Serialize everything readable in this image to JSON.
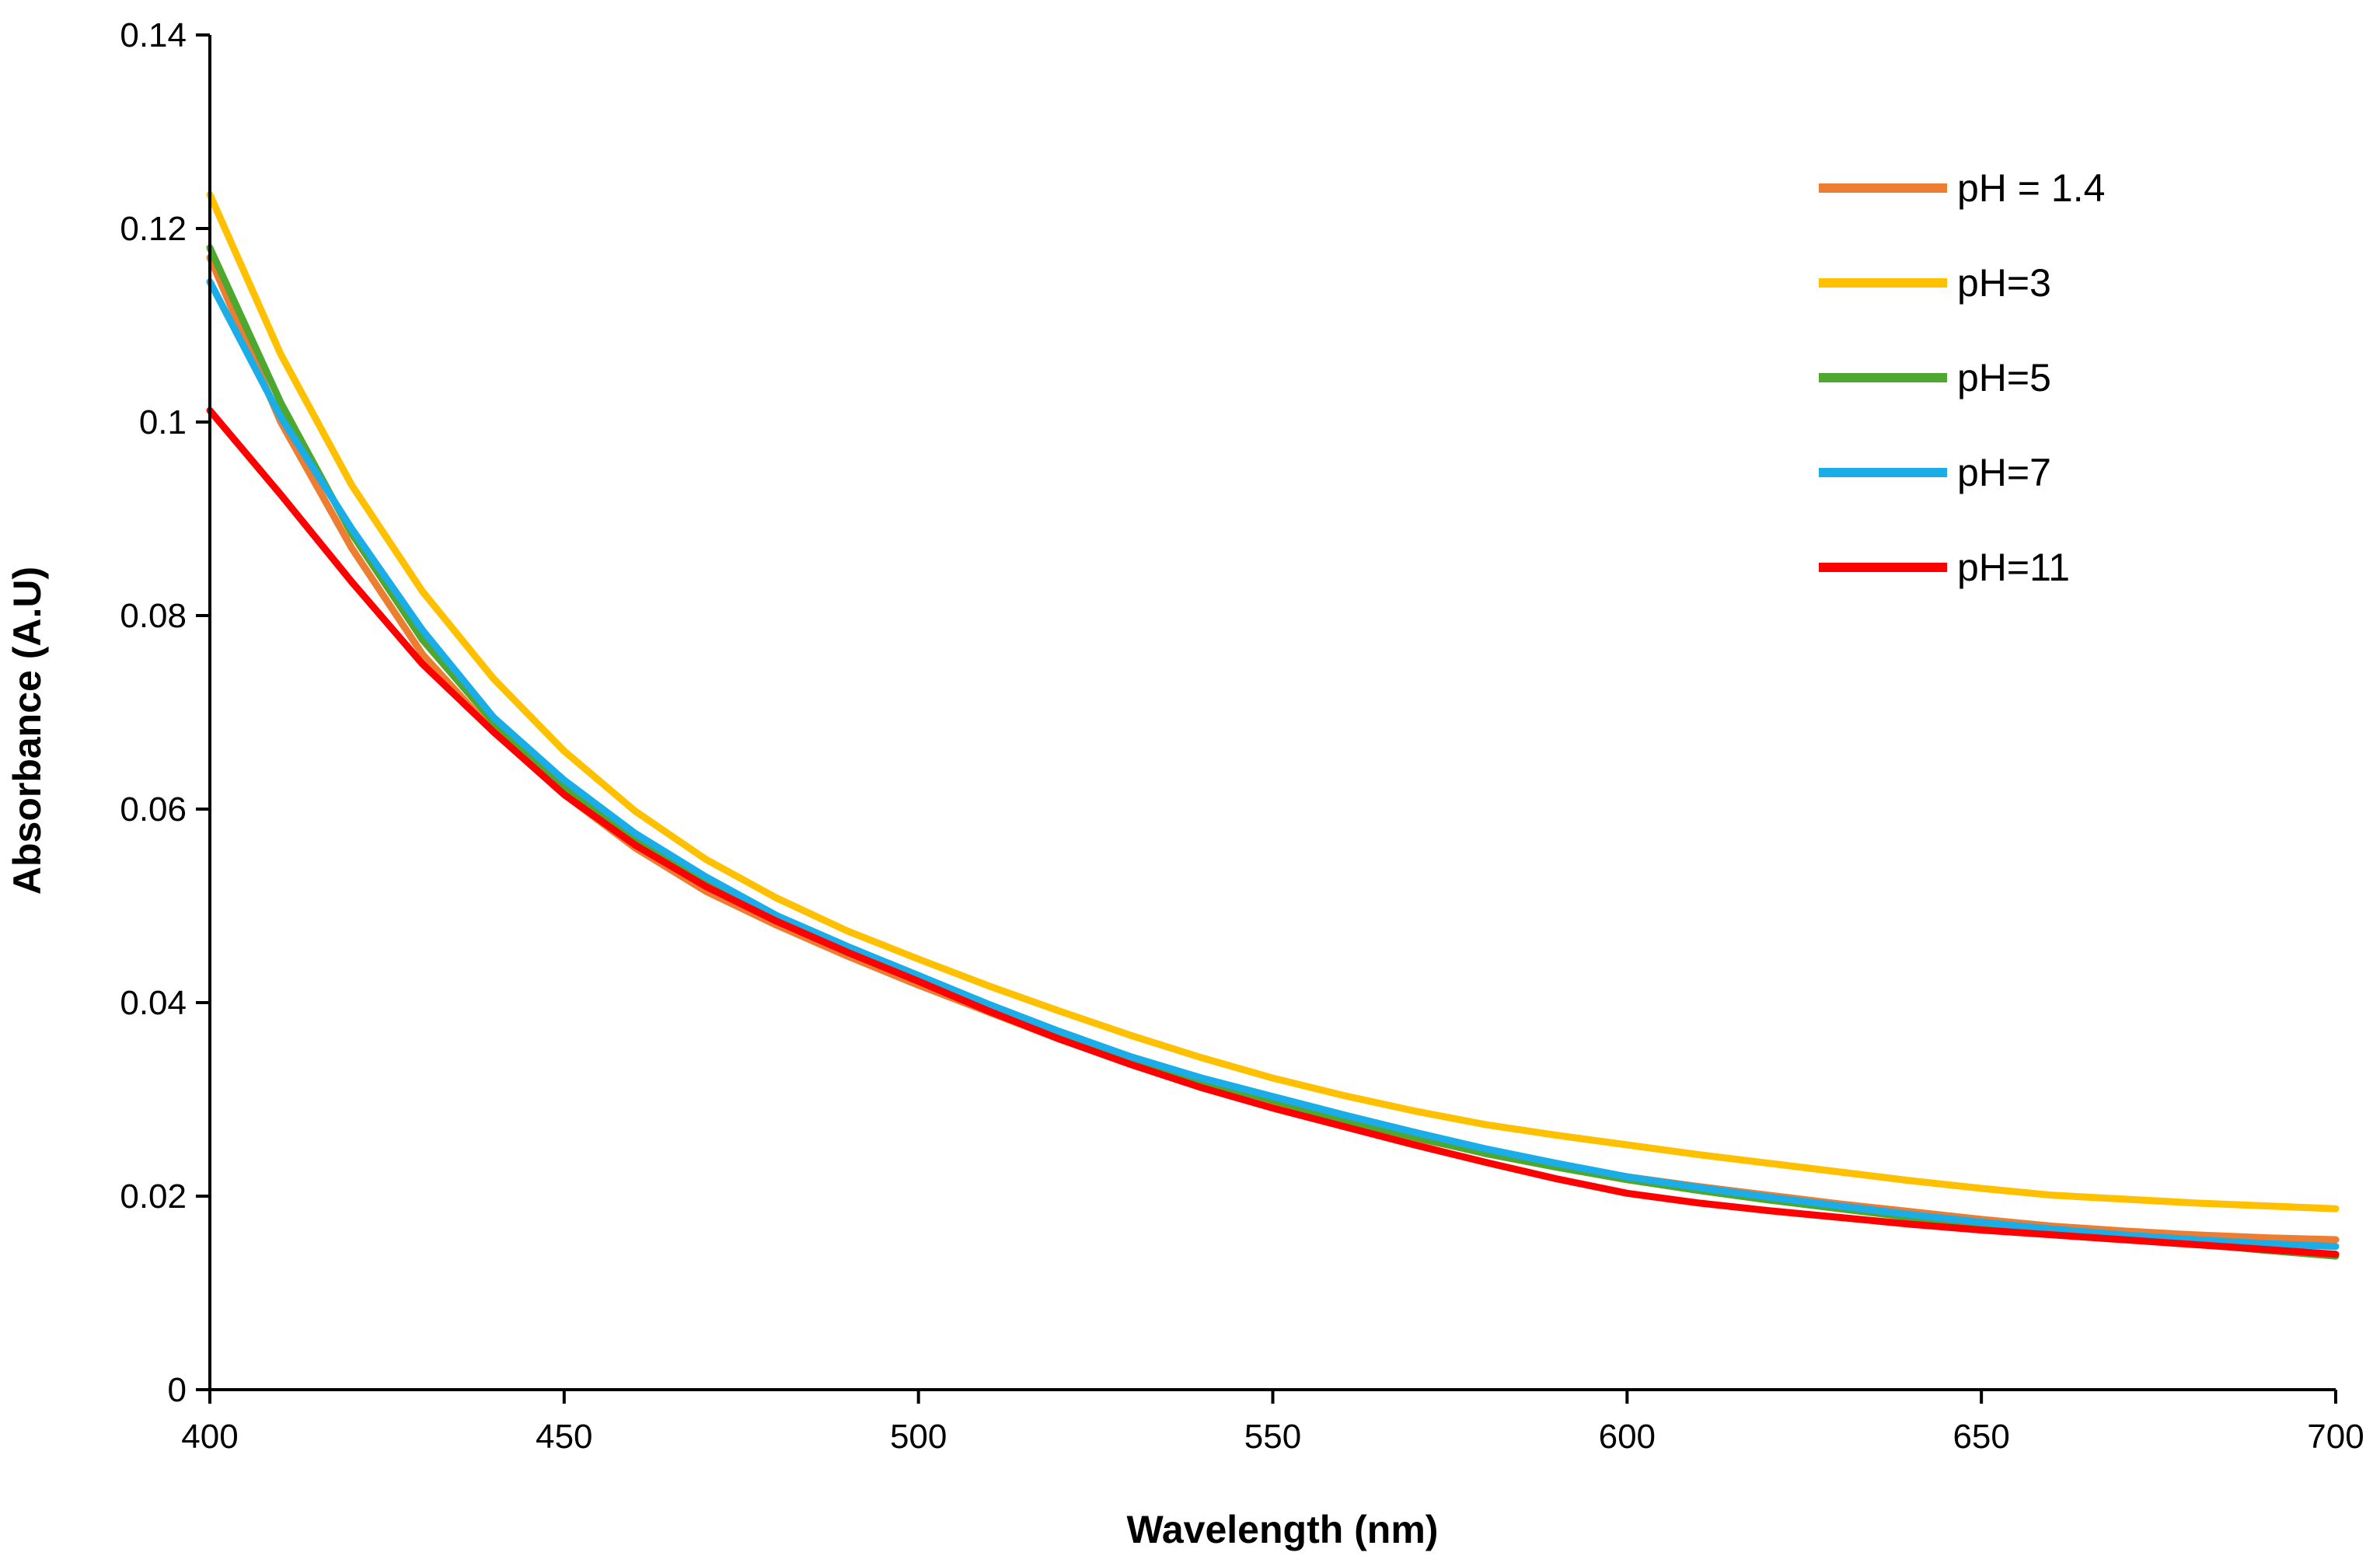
{
  "chart_data": {
    "type": "line",
    "title": "",
    "xlabel": "Wavelength (nm)",
    "ylabel": "Absorbance (A.U)",
    "xlim": [
      400,
      700
    ],
    "ylim": [
      0,
      0.14
    ],
    "x_ticks": [
      "400",
      "450",
      "500",
      "550",
      "600",
      "650",
      "700"
    ],
    "y_ticks": [
      "0",
      "0.02",
      "0.04",
      "0.06",
      "0.08",
      "0.1",
      "0.12",
      "0.14"
    ],
    "grid": false,
    "legend_position": "top-right",
    "x": [
      400,
      410,
      420,
      430,
      440,
      450,
      460,
      470,
      480,
      490,
      500,
      510,
      520,
      530,
      540,
      550,
      560,
      570,
      580,
      590,
      600,
      610,
      620,
      630,
      640,
      650,
      660,
      670,
      680,
      690,
      700
    ],
    "series": [
      {
        "name": "pH = 1.4",
        "color": "#ED7D31",
        "values": [
          0.117,
          0.1,
          0.087,
          0.076,
          0.068,
          0.0615,
          0.056,
          0.0515,
          0.048,
          0.0448,
          0.0418,
          0.039,
          0.0362,
          0.0337,
          0.0315,
          0.0295,
          0.0276,
          0.026,
          0.0245,
          0.0232,
          0.022,
          0.021,
          0.0201,
          0.0192,
          0.0184,
          0.0176,
          0.0169,
          0.0164,
          0.016,
          0.0157,
          0.0155
        ]
      },
      {
        "name": "pH=3",
        "color": "#FFC000",
        "values": [
          0.1235,
          0.107,
          0.0935,
          0.0825,
          0.0735,
          0.066,
          0.0598,
          0.0548,
          0.0508,
          0.0474,
          0.0445,
          0.0417,
          0.0391,
          0.0366,
          0.0343,
          0.0322,
          0.0304,
          0.0288,
          0.0274,
          0.0263,
          0.0253,
          0.0243,
          0.0234,
          0.0225,
          0.0216,
          0.0208,
          0.0201,
          0.0197,
          0.0193,
          0.019,
          0.0187
        ]
      },
      {
        "name": "pH=5",
        "color": "#4EA72E",
        "values": [
          0.118,
          0.102,
          0.0885,
          0.0775,
          0.069,
          0.0622,
          0.057,
          0.0525,
          0.0487,
          0.0455,
          0.0425,
          0.0394,
          0.0366,
          0.0341,
          0.0319,
          0.0299,
          0.0279,
          0.0261,
          0.0244,
          0.023,
          0.0217,
          0.0206,
          0.0196,
          0.0187,
          0.0178,
          0.017,
          0.0163,
          0.0157,
          0.0151,
          0.0144,
          0.0138
        ]
      },
      {
        "name": "pH=7",
        "color": "#1AADE8",
        "values": [
          0.1145,
          0.1005,
          0.089,
          0.0785,
          0.0695,
          0.063,
          0.0575,
          0.053,
          0.049,
          0.0458,
          0.0428,
          0.0398,
          0.037,
          0.0344,
          0.0322,
          0.0303,
          0.0284,
          0.0266,
          0.0249,
          0.0234,
          0.022,
          0.0209,
          0.0199,
          0.019,
          0.0181,
          0.0173,
          0.0166,
          0.016,
          0.0155,
          0.0151,
          0.0148
        ]
      },
      {
        "name": "pH=11",
        "color": "#FF0000",
        "values": [
          0.1012,
          0.0925,
          0.0835,
          0.075,
          0.068,
          0.0615,
          0.0563,
          0.052,
          0.0484,
          0.0452,
          0.0422,
          0.0391,
          0.0362,
          0.0336,
          0.0312,
          0.0291,
          0.0272,
          0.0253,
          0.0235,
          0.0218,
          0.0203,
          0.0193,
          0.0185,
          0.0178,
          0.0171,
          0.0165,
          0.016,
          0.0155,
          0.015,
          0.0145,
          0.014
        ]
      }
    ]
  }
}
